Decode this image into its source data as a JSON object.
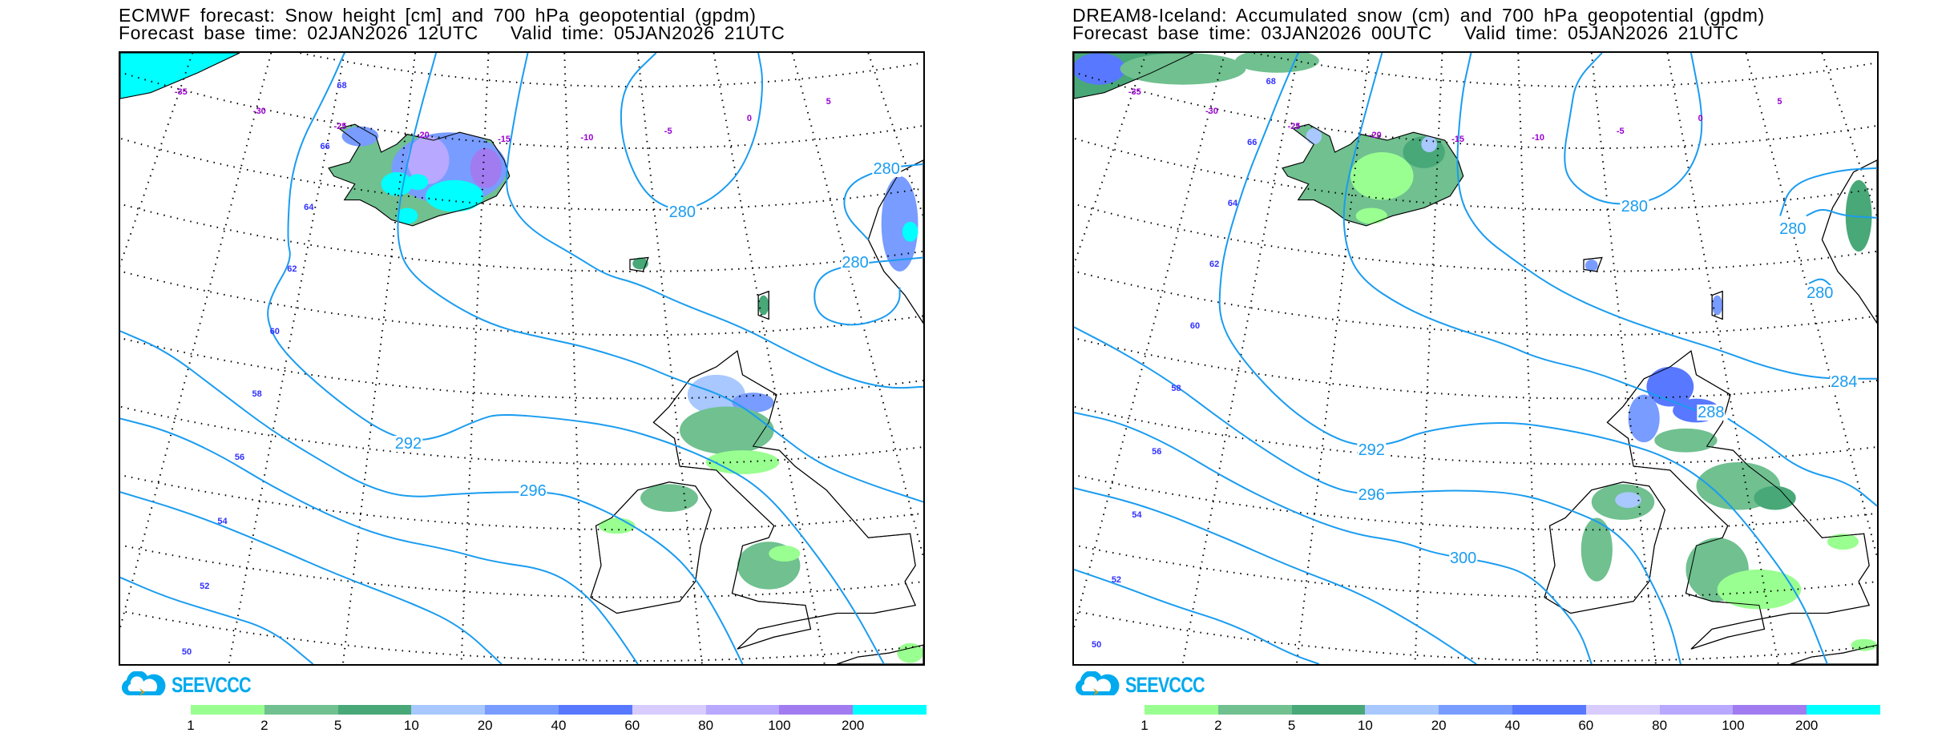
{
  "panels": [
    {
      "title_line1": "ECMWF forecast: Snow height [cm] and 700 hPa geopotential (gpdm)",
      "title_line2_base": "Forecast base time: 02JAN2026 12UTC",
      "title_line2_valid": "Valid time: 05JAN2026 21UTC",
      "contour_labels": [
        "280",
        "280",
        "280",
        "292",
        "296"
      ],
      "latitude_labels": [
        "68",
        "66",
        "64",
        "62",
        "60",
        "58",
        "56",
        "54",
        "52",
        "50"
      ],
      "longitude_labels": [
        "-35",
        "-30",
        "-25",
        "-20",
        "-15",
        "-10",
        "-5",
        "0",
        "5"
      ],
      "logo_text": "SEEVCCC"
    },
    {
      "title_line1": "DREAM8-Iceland: Accumulated snow (cm) and 700 hPa geopotential (gpdm)",
      "title_line2_base": "Forecast base time: 03JAN2026 00UTC",
      "title_line2_valid": "Valid time: 05JAN2026 21UTC",
      "contour_labels": [
        "280",
        "280",
        "280",
        "284",
        "288",
        "292",
        "296",
        "300"
      ],
      "latitude_labels": [
        "68",
        "66",
        "64",
        "62",
        "60",
        "58",
        "56",
        "54",
        "52",
        "50"
      ],
      "longitude_labels": [
        "-35",
        "-30",
        "-25",
        "-20",
        "-15",
        "-10",
        "-5",
        "0",
        "5"
      ],
      "logo_text": "SEEVCCC"
    }
  ],
  "chart_data": {
    "type": "heatmap",
    "title": "Snow height / accumulated snow (cm) with 700 hPa geopotential contours (gpdm)",
    "colorbar": {
      "unit": "cm",
      "tick_labels": [
        "1",
        "2",
        "5",
        "10",
        "20",
        "40",
        "60",
        "80",
        "100",
        "200"
      ],
      "colors": [
        "#99ff90",
        "#70c090",
        "#48a878",
        "#a8c8ff",
        "#789cff",
        "#5878ff",
        "#d8ccff",
        "#b8a8ff",
        "#a07cf0",
        "#00ffff"
      ]
    },
    "contour_color": "#1a9cf0",
    "series": [
      {
        "name": "ECMWF",
        "geopotential_contours_gpdm": [
          280,
          292,
          296
        ]
      },
      {
        "name": "DREAM8-Iceland",
        "geopotential_contours_gpdm": [
          280,
          284,
          288,
          292,
          296,
          300
        ]
      }
    ],
    "latitudes": [
      50,
      52,
      54,
      56,
      58,
      60,
      62,
      64,
      66,
      68
    ],
    "longitudes": [
      -35,
      -30,
      -25,
      -20,
      -15,
      -10,
      -5,
      0,
      5
    ]
  }
}
